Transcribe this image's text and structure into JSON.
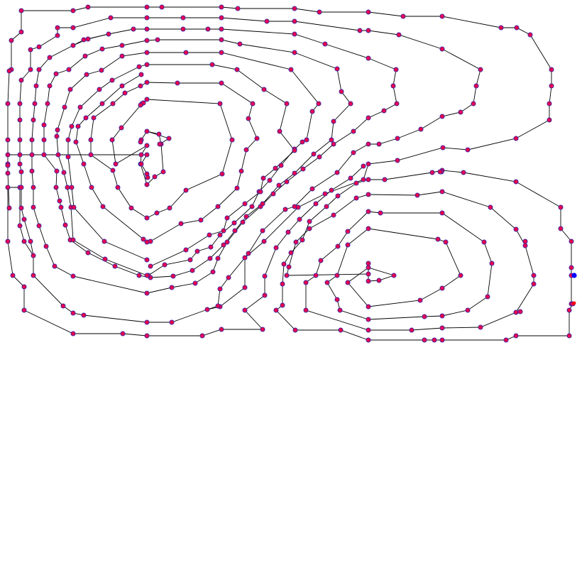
{
  "figure": {
    "background": "#ffffff",
    "line_color": "#000000",
    "node_fill": "#e8004f",
    "node_stroke": "#2a2aa8",
    "start_marker_color": "#0000ff",
    "end_marker_color": "#ff0000"
  }
}
